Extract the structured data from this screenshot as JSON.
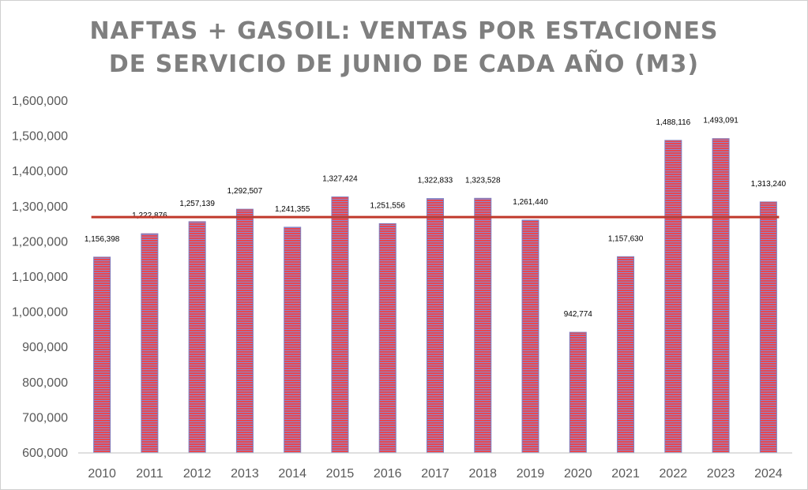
{
  "chart_data": {
    "type": "bar",
    "title_lines": [
      "NAFTAS + GASOIL: VENTAS POR ESTACIONES",
      "DE SERVICIO DE JUNIO DE CADA AÑO (M3)"
    ],
    "xlabel": "",
    "ylabel": "",
    "categories": [
      "2010",
      "2011",
      "2012",
      "2013",
      "2014",
      "2015",
      "2016",
      "2017",
      "2018",
      "2019",
      "2020",
      "2021",
      "2022",
      "2023",
      "2024"
    ],
    "values": [
      1156398,
      1222876,
      1257139,
      1292507,
      1241355,
      1327424,
      1251556,
      1322833,
      1323528,
      1261440,
      942774,
      1157630,
      1488116,
      1493091,
      1313240
    ],
    "data_labels": [
      "1,156,398",
      "1,222,876",
      "1,257,139",
      "1,292,507",
      "1,241,355",
      "1,327,424",
      "1,251,556",
      "1,322,833",
      "1,323,528",
      "1,261,440",
      "942,774",
      "1,157,630",
      "1,488,116",
      "1,493,091",
      "1,313,240"
    ],
    "ylim": [
      600000,
      1600000
    ],
    "yticks": [
      600000,
      700000,
      800000,
      900000,
      1000000,
      1100000,
      1200000,
      1300000,
      1400000,
      1500000,
      1600000
    ],
    "ytick_labels": [
      "600,000",
      "700,000",
      "800,000",
      "900,000",
      "1,000,000",
      "1,100,000",
      "1,200,000",
      "1,300,000",
      "1,400,000",
      "1,500,000",
      "1,600,000"
    ],
    "reference_line": {
      "value": 1270000
    },
    "grid": false,
    "legend": "none",
    "colors": {
      "bar_stripe_red": "#e8474f",
      "bar_stripe_blue": "#8a8ad0",
      "bar_edge": "#7f7fbf",
      "reference_line": "#c0392b",
      "axis": "#bfbfbf",
      "title": "#7f7f7f"
    }
  }
}
